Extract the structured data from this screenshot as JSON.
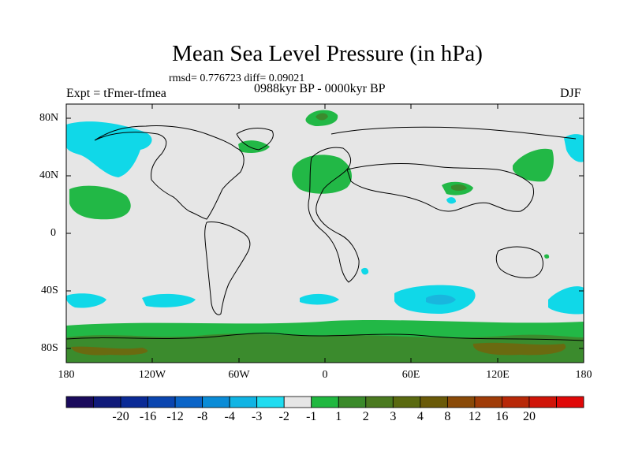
{
  "map": {
    "title": "Mean Sea Level Pressure (in hPa)",
    "rmsd_line": "rmsd= 0.776723 diff= 0.09021",
    "experiment": "Expt = tFmer-tfmea",
    "period": "0988kyr BP - 0000kyr BP",
    "season": "DJF",
    "lat_labels": [
      "80N",
      "40N",
      "0",
      "40S",
      "80S"
    ],
    "lon_labels": [
      "180",
      "120W",
      "60W",
      "0",
      "60E",
      "120E",
      "180"
    ]
  },
  "colorbar": {
    "colors": [
      "#1a0a5c",
      "#101a7a",
      "#0a2a96",
      "#0a45b0",
      "#0a64c8",
      "#0a8cd7",
      "#10b4e4",
      "#20dcf0",
      "#e6e6e6",
      "#20b840",
      "#3a8a2a",
      "#4a7a20",
      "#5a6a10",
      "#6a5a08",
      "#8a4a08",
      "#a03c08",
      "#b82808",
      "#d01408",
      "#e00808"
    ],
    "labels": [
      "-20",
      "-16",
      "-12",
      "-8",
      "-4",
      "-3",
      "-2",
      "-1",
      "1",
      "2",
      "3",
      "4",
      "8",
      "12",
      "16",
      "20"
    ]
  },
  "fill_colors": {
    "land_bg": "#e6e6e6",
    "neg1": "#10d8e8",
    "neg2": "#19b6de",
    "pos1": "#22b846",
    "pos2": "#3b8b2d",
    "pos3": "#6a6a10"
  }
}
